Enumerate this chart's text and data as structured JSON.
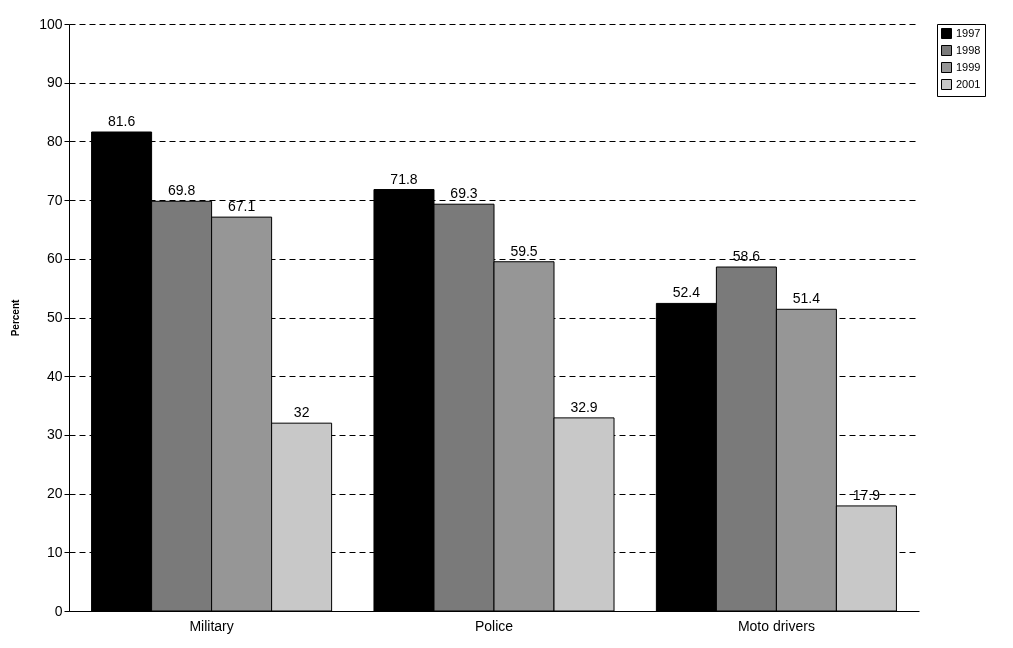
{
  "chart_data": {
    "type": "bar",
    "ylabel": "Percent",
    "categories": [
      "Military",
      "Police",
      "Moto drivers"
    ],
    "series": [
      {
        "name": "1997",
        "color": "#000000",
        "values": [
          81.6,
          71.8,
          52.4
        ]
      },
      {
        "name": "1998",
        "color": "#7a7a7a",
        "values": [
          69.8,
          69.3,
          58.6
        ]
      },
      {
        "name": "1999",
        "color": "#969696",
        "values": [
          67.1,
          59.5,
          51.4
        ]
      },
      {
        "name": "2001",
        "color": "#c8c8c8",
        "values": [
          32,
          32.9,
          17.9
        ]
      }
    ],
    "ylim": [
      0,
      100
    ],
    "yticks": [
      0,
      10,
      20,
      30,
      40,
      50,
      60,
      70,
      80,
      90,
      100
    ],
    "grid": "y",
    "legend": "right",
    "data_labels": true
  }
}
